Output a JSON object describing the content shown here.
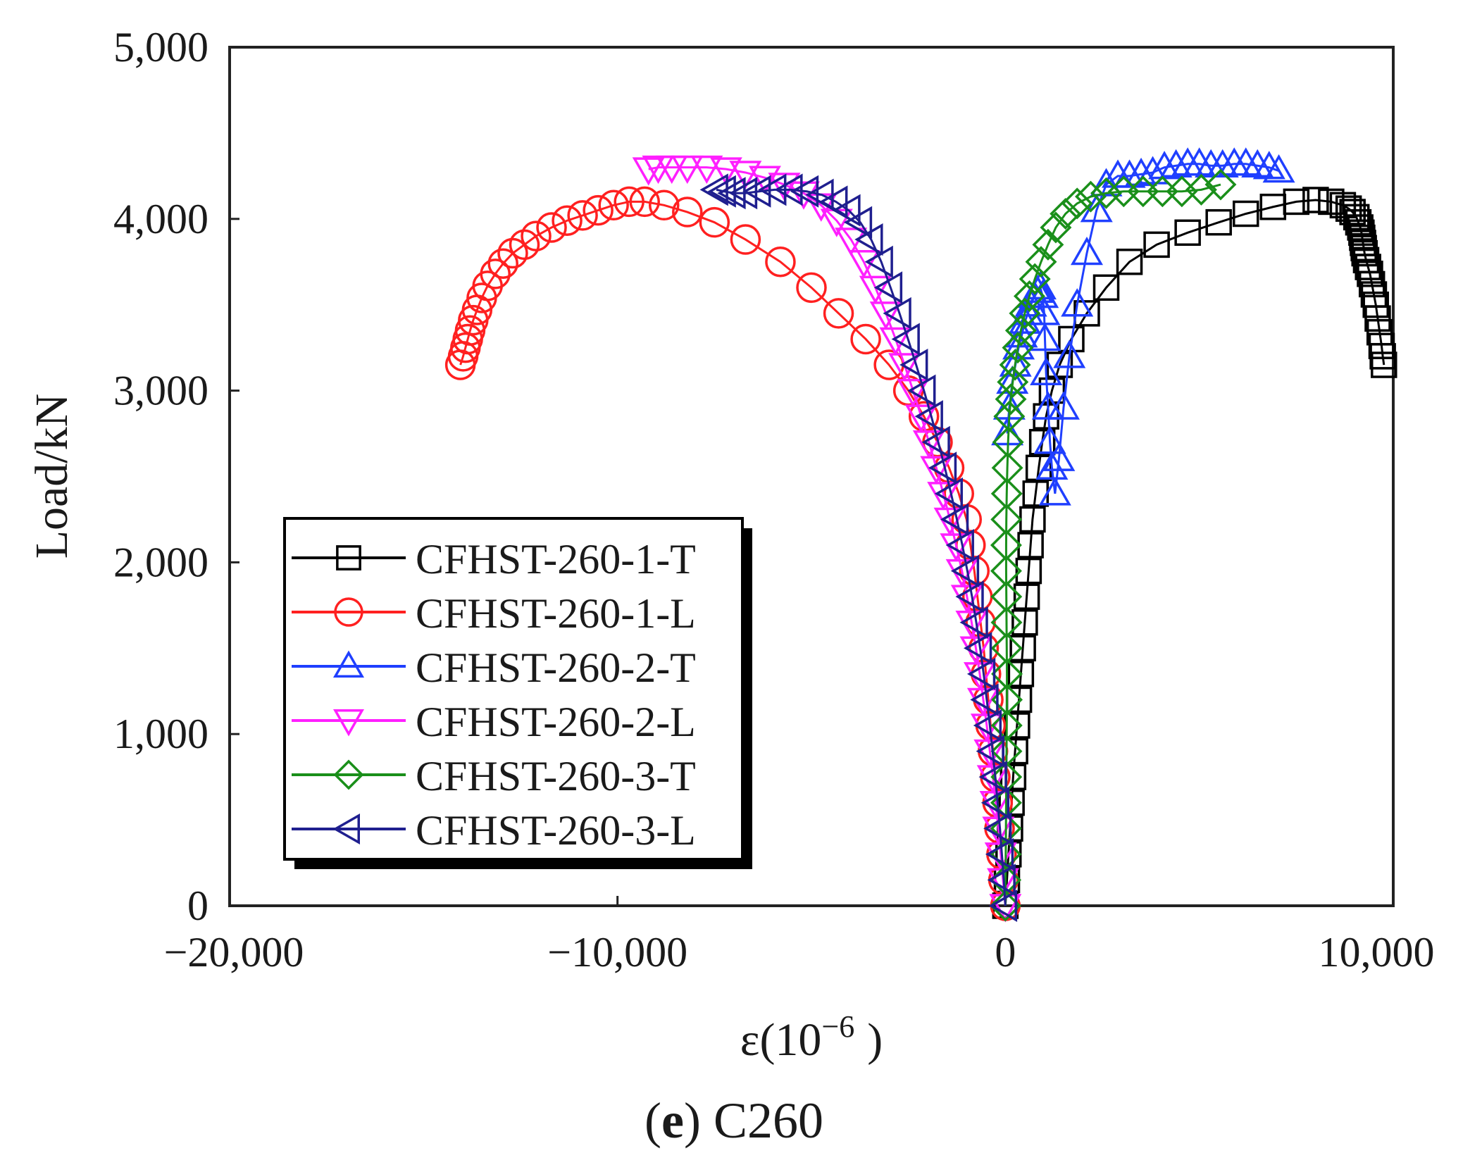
{
  "chart_data": {
    "type": "scatter",
    "xlabel": "ε(10",
    "xlabel_exp": "−6",
    "xlabel_close": ")",
    "ylabel": "Load/kN",
    "xlim": [
      -20000,
      10000
    ],
    "ylim": [
      0,
      5000
    ],
    "x_ticks": [
      -20000,
      -10000,
      0,
      10000
    ],
    "x_tick_labels": [
      "−20,000",
      "−10,000",
      "0",
      "10,000"
    ],
    "y_ticks": [
      0,
      1000,
      2000,
      3000,
      4000,
      5000
    ],
    "y_tick_labels": [
      "0",
      "1,000",
      "2,000",
      "3,000",
      "4,000",
      "5,000"
    ],
    "caption_bold": "e",
    "caption_prefix": "(",
    "caption_suffix": ") C260",
    "legend_position": "lower-left",
    "series": [
      {
        "name": "CFHST-260-1-T",
        "color": "#000000",
        "marker": "square",
        "x": [
          0,
          40,
          80,
          120,
          160,
          200,
          250,
          300,
          350,
          400,
          450,
          500,
          550,
          600,
          650,
          700,
          780,
          860,
          950,
          1050,
          1200,
          1400,
          1700,
          2100,
          2600,
          3200,
          3900,
          4700,
          5500,
          6200,
          6900,
          7500,
          8000,
          8400,
          8700,
          8850,
          8950,
          9050,
          9100,
          9150,
          9180,
          9200,
          9220,
          9240,
          9260,
          9300,
          9350,
          9400,
          9450,
          9500,
          9550,
          9600,
          9650,
          9700,
          9730,
          9760
        ],
        "y": [
          0,
          150,
          300,
          450,
          600,
          750,
          900,
          1050,
          1200,
          1350,
          1500,
          1650,
          1800,
          1950,
          2100,
          2250,
          2400,
          2550,
          2700,
          2850,
          3000,
          3150,
          3300,
          3450,
          3600,
          3750,
          3850,
          3920,
          3980,
          4030,
          4070,
          4100,
          4110,
          4100,
          4080,
          4060,
          4040,
          4010,
          3980,
          3950,
          3920,
          3890,
          3860,
          3830,
          3800,
          3760,
          3720,
          3680,
          3620,
          3560,
          3500,
          3420,
          3340,
          3260,
          3200,
          3150
        ]
      },
      {
        "name": "CFHST-260-1-L",
        "color": "#ff2020",
        "marker": "circle",
        "x": [
          0,
          -50,
          -100,
          -150,
          -200,
          -260,
          -320,
          -380,
          -440,
          -500,
          -560,
          -640,
          -720,
          -800,
          -900,
          -1000,
          -1200,
          -1450,
          -1750,
          -2100,
          -2500,
          -3000,
          -3600,
          -4300,
          -5000,
          -5800,
          -6700,
          -7500,
          -8200,
          -8800,
          -9300,
          -9700,
          -10100,
          -10500,
          -10900,
          -11300,
          -11700,
          -12100,
          -12400,
          -12700,
          -12950,
          -13150,
          -13350,
          -13500,
          -13620,
          -13720,
          -13800,
          -13860,
          -13920,
          -13980,
          -14050
        ],
        "y": [
          0,
          150,
          300,
          450,
          600,
          750,
          900,
          1050,
          1200,
          1350,
          1500,
          1650,
          1800,
          1950,
          2100,
          2250,
          2400,
          2550,
          2700,
          2850,
          3000,
          3150,
          3300,
          3450,
          3600,
          3750,
          3880,
          3980,
          4040,
          4080,
          4100,
          4100,
          4080,
          4050,
          4020,
          3990,
          3950,
          3900,
          3850,
          3800,
          3740,
          3680,
          3610,
          3540,
          3470,
          3410,
          3350,
          3300,
          3250,
          3200,
          3150
        ]
      },
      {
        "name": "CFHST-260-2-T",
        "color": "#1f3fff",
        "marker": "triangle-up",
        "x": [
          50,
          100,
          180,
          260,
          340,
          420,
          500,
          580,
          660,
          740,
          820,
          900,
          960,
          1000,
          1020,
          1050,
          1100,
          1150,
          1200,
          1280,
          1380,
          1500,
          1650,
          1850,
          2100,
          2350,
          2600,
          2900,
          3200,
          3500,
          3800,
          4100,
          4400,
          4700,
          5000,
          5300,
          5600,
          5900,
          6200,
          6500,
          6800,
          7050
        ],
        "y": [
          2750,
          2900,
          3050,
          3150,
          3250,
          3320,
          3400,
          3450,
          3500,
          3550,
          3580,
          3600,
          3550,
          3450,
          3300,
          3100,
          2900,
          2700,
          2550,
          2400,
          2600,
          2900,
          3200,
          3500,
          3800,
          4050,
          4200,
          4250,
          4250,
          4260,
          4270,
          4300,
          4310,
          4320,
          4320,
          4310,
          4310,
          4320,
          4320,
          4310,
          4300,
          4280
        ]
      },
      {
        "name": "CFHST-260-2-L",
        "color": "#ff1fff",
        "marker": "triangle-down",
        "x": [
          0,
          -60,
          -120,
          -180,
          -250,
          -320,
          -400,
          -480,
          -570,
          -660,
          -760,
          -870,
          -990,
          -1120,
          -1270,
          -1430,
          -1600,
          -1780,
          -1970,
          -2170,
          -2380,
          -2600,
          -2830,
          -3080,
          -3350,
          -3650,
          -3980,
          -4350,
          -4750,
          -5200,
          -5700,
          -6200,
          -6700,
          -7200,
          -7700,
          -8200,
          -8600,
          -8950,
          -9200
        ],
        "y": [
          0,
          150,
          300,
          450,
          600,
          750,
          900,
          1050,
          1200,
          1350,
          1500,
          1650,
          1800,
          1950,
          2100,
          2250,
          2400,
          2550,
          2700,
          2850,
          3000,
          3150,
          3300,
          3450,
          3600,
          3750,
          3880,
          3990,
          4080,
          4150,
          4200,
          4240,
          4270,
          4290,
          4300,
          4300,
          4300,
          4300,
          4290
        ]
      },
      {
        "name": "CFHST-260-3-T",
        "color": "#1a8f1a",
        "marker": "diamond",
        "x": [
          0,
          5,
          10,
          15,
          20,
          25,
          30,
          35,
          40,
          40,
          35,
          30,
          25,
          20,
          20,
          25,
          35,
          50,
          70,
          100,
          140,
          190,
          250,
          320,
          400,
          500,
          620,
          760,
          920,
          1100,
          1300,
          1550,
          1850,
          2200,
          2600,
          3050,
          3550,
          4050,
          4550,
          5050,
          5550
        ],
        "y": [
          0,
          150,
          300,
          450,
          600,
          750,
          900,
          1050,
          1200,
          1350,
          1500,
          1650,
          1800,
          1950,
          2100,
          2250,
          2400,
          2550,
          2700,
          2850,
          2950,
          3050,
          3150,
          3250,
          3350,
          3450,
          3550,
          3650,
          3750,
          3850,
          3950,
          4030,
          4090,
          4130,
          4150,
          4160,
          4160,
          4160,
          4160,
          4170,
          4200
        ]
      },
      {
        "name": "CFHST-260-3-L",
        "color": "#1f1f8f",
        "marker": "triangle-left",
        "x": [
          0,
          -40,
          -90,
          -140,
          -200,
          -260,
          -330,
          -400,
          -480,
          -560,
          -650,
          -750,
          -860,
          -980,
          -1110,
          -1250,
          -1400,
          -1560,
          -1730,
          -1910,
          -2100,
          -2300,
          -2510,
          -2730,
          -2960,
          -3200,
          -3460,
          -3740,
          -4040,
          -4370,
          -4730,
          -5120,
          -5530,
          -5950,
          -6350,
          -6700,
          -7000,
          -7250,
          -7450
        ],
        "y": [
          0,
          150,
          300,
          450,
          600,
          750,
          900,
          1050,
          1200,
          1350,
          1500,
          1650,
          1800,
          1950,
          2100,
          2250,
          2400,
          2550,
          2700,
          2850,
          3000,
          3150,
          3300,
          3450,
          3600,
          3750,
          3880,
          3980,
          4050,
          4100,
          4140,
          4160,
          4170,
          4170,
          4160,
          4150,
          4150,
          4160,
          4170
        ]
      }
    ]
  }
}
